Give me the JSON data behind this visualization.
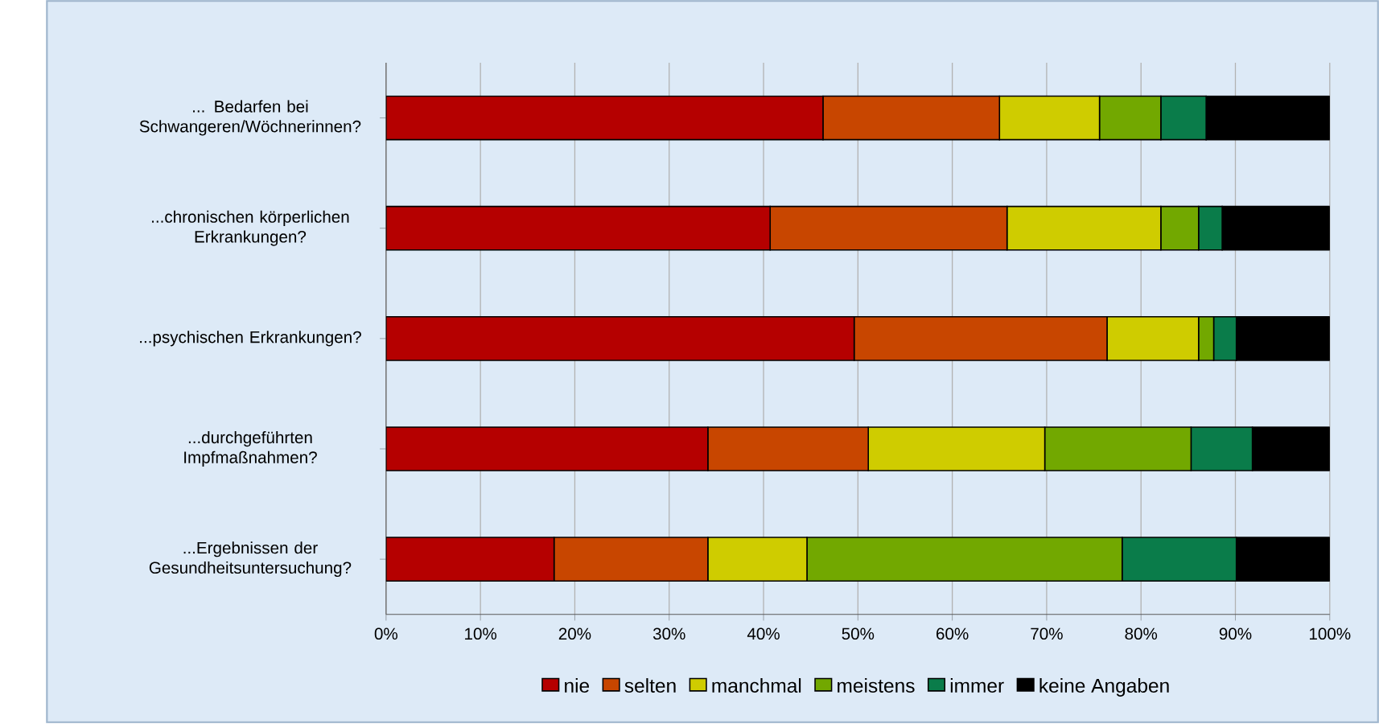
{
  "chart_data": {
    "type": "bar",
    "orientation": "horizontal",
    "stacked": true,
    "categories": [
      "... Bedarfen bei Schwangeren/Wöchnerinnen?",
      "...chronischen körperlichen Erkrankungen?",
      "...psychischen Erkrankungen?",
      "...durchgeführten Impfmaßnahmen?",
      "...Ergebnissen der Gesundheitsuntersuchung?"
    ],
    "series": [
      {
        "name": "nie",
        "color": "#b50000",
        "values": [
          46.3,
          40.7,
          49.6,
          34.1,
          17.8
        ]
      },
      {
        "name": "selten",
        "color": "#c84600",
        "values": [
          18.7,
          25.1,
          26.8,
          17.0,
          16.3
        ]
      },
      {
        "name": "manchmal",
        "color": "#cfcc00",
        "values": [
          10.6,
          16.3,
          9.7,
          18.7,
          10.5
        ]
      },
      {
        "name": "meistens",
        "color": "#72a800",
        "values": [
          6.5,
          4.0,
          1.6,
          15.5,
          33.4
        ]
      },
      {
        "name": "immer",
        "color": "#0a7c4a",
        "values": [
          4.8,
          2.5,
          2.4,
          6.5,
          12.1
        ]
      },
      {
        "name": "keine Angaben",
        "color": "#000000",
        "values": [
          13.1,
          11.4,
          9.9,
          8.2,
          9.9
        ]
      }
    ],
    "xlim": [
      0,
      100
    ],
    "xticks": [
      {
        "value": 0,
        "label": "0%"
      },
      {
        "value": 10,
        "label": "10%"
      },
      {
        "value": 20,
        "label": "20%"
      },
      {
        "value": 30,
        "label": "30%"
      },
      {
        "value": 40,
        "label": "40%"
      },
      {
        "value": 50,
        "label": "50%"
      },
      {
        "value": 60,
        "label": "60%"
      },
      {
        "value": 70,
        "label": "70%"
      },
      {
        "value": 80,
        "label": "80%"
      },
      {
        "value": 90,
        "label": "90%"
      },
      {
        "value": 100,
        "label": "100%"
      }
    ],
    "grid": "x",
    "legend": "bottom"
  }
}
